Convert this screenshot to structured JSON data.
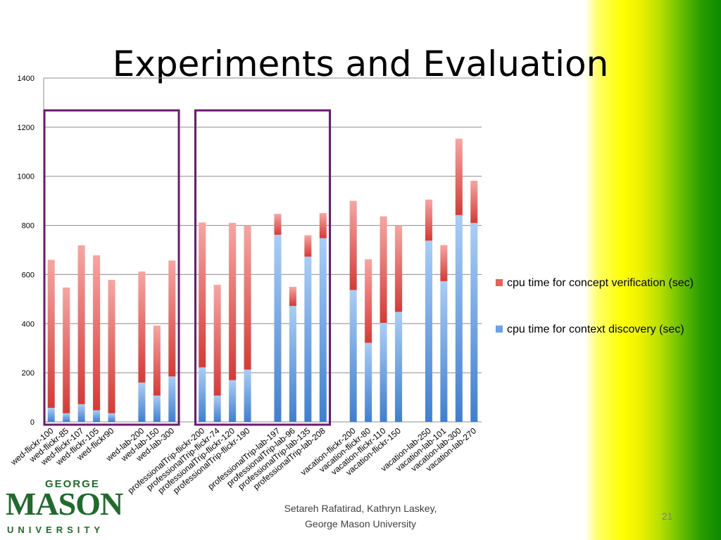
{
  "slide": {
    "title": "Experiments and Evaluation",
    "footer_line1": "Setareh Rafatirad, Kathryn Laskey,",
    "footer_line2": "George Mason University",
    "page_number": "21"
  },
  "logo": {
    "line1": "GEORGE",
    "line2": "MASON",
    "line3": "UNIVERSITY"
  },
  "colors": {
    "discovery_top": "#a9cdf7",
    "discovery_bottom": "#3f7fd0",
    "verification_top": "#f7a5a2",
    "verification_bottom": "#d63a36",
    "highlight_box": "#6a1b6e",
    "gridline": "#8c8c8c"
  },
  "chart_data": {
    "type": "bar",
    "stacked": true,
    "ylim": [
      0,
      1400
    ],
    "yticks": [
      "0",
      "200",
      "400",
      "600",
      "800",
      "1000",
      "1200",
      "1400"
    ],
    "grid": true,
    "legend_position": "right",
    "categories": [
      "wed-flickr-100",
      "wed-flickr-85",
      "wed-flickr-107",
      "wed-flickr-105",
      "wed-flickr90",
      "",
      "wed-lab-200",
      "wed-lab-150",
      "wed-lab-300",
      "",
      "professionalTrip-flickr-200",
      "professionalTrip-flickr-74",
      "professionalTrip-flickr-120",
      "professionalTrip-flickr-190",
      "",
      "professionalTrip-lab-197",
      "professionalTrip-lab-96",
      "professionalTrip-lab-135",
      "professionalTrip-lab-208",
      "",
      "vacation-flickr-200",
      "vacation-flickr-80",
      "vacation-flickr-110",
      "vacation-flickr-150",
      "",
      "vacation-lab-250",
      "vacation-lab-101",
      "vacation-lab-300",
      "vacation-lab-270"
    ],
    "series": [
      {
        "name": "cpu time for context discovery (sec)",
        "values": [
          57,
          35,
          72,
          47,
          35,
          null,
          160,
          107,
          185,
          null,
          222,
          107,
          170,
          213,
          null,
          762,
          472,
          673,
          748,
          null,
          537,
          322,
          403,
          448,
          null,
          738,
          573,
          842,
          810
        ]
      },
      {
        "name": "cpu time for concept verification (sec)",
        "values": [
          603,
          512,
          647,
          631,
          543,
          null,
          452,
          285,
          472,
          null,
          590,
          451,
          640,
          587,
          null,
          85,
          78,
          87,
          102,
          null,
          363,
          340,
          434,
          352,
          null,
          167,
          147,
          311,
          172
        ]
      }
    ],
    "highlight_groups": [
      [
        0,
        8
      ],
      [
        10,
        18
      ]
    ],
    "legend": [
      "cpu time for concept verification (sec)",
      "cpu time for context discovery (sec)"
    ]
  }
}
